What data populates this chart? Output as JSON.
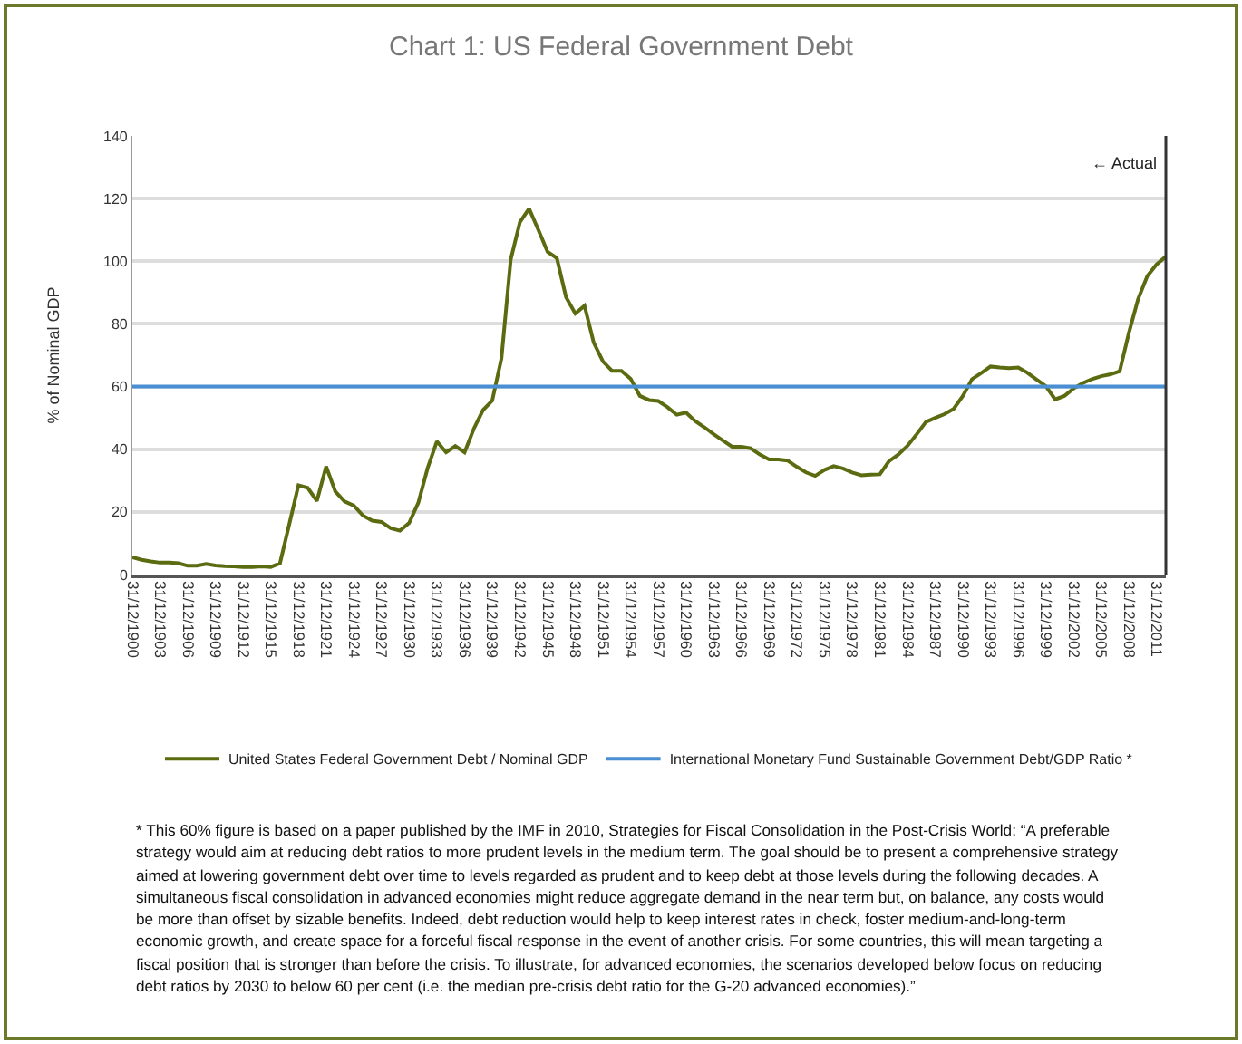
{
  "chart_data": {
    "type": "line",
    "title": "Chart 1: US Federal Government Debt",
    "ylabel": "% of Nominal GDP",
    "x": [
      "1900-12-31",
      "1901-12-31",
      "1902-12-31",
      "1903-12-31",
      "1904-12-31",
      "1905-12-31",
      "1906-12-31",
      "1907-12-31",
      "1908-12-31",
      "1909-12-31",
      "1910-12-31",
      "1911-12-31",
      "1912-12-31",
      "1913-12-31",
      "1914-12-31",
      "1915-12-31",
      "1916-12-31",
      "1917-12-31",
      "1918-12-31",
      "1919-12-31",
      "1920-12-31",
      "1921-12-31",
      "1922-12-31",
      "1923-12-31",
      "1924-12-31",
      "1925-12-31",
      "1926-12-31",
      "1927-12-31",
      "1928-12-31",
      "1929-12-31",
      "1930-12-31",
      "1931-12-31",
      "1932-12-31",
      "1933-12-31",
      "1934-12-31",
      "1935-12-31",
      "1936-12-31",
      "1937-12-31",
      "1938-12-31",
      "1939-12-31",
      "1940-12-31",
      "1941-12-31",
      "1942-12-31",
      "1943-12-31",
      "1944-12-31",
      "1945-12-31",
      "1946-12-31",
      "1947-12-31",
      "1948-12-31",
      "1949-12-31",
      "1950-12-31",
      "1951-12-31",
      "1952-12-31",
      "1953-12-31",
      "1954-12-31",
      "1955-12-31",
      "1956-12-31",
      "1957-12-31",
      "1958-12-31",
      "1959-12-31",
      "1960-12-31",
      "1961-12-31",
      "1962-12-31",
      "1963-12-31",
      "1964-12-31",
      "1965-12-31",
      "1966-12-31",
      "1967-12-31",
      "1968-12-31",
      "1969-12-31",
      "1970-12-31",
      "1971-12-31",
      "1972-12-31",
      "1973-12-31",
      "1974-12-31",
      "1975-12-31",
      "1976-12-31",
      "1977-12-31",
      "1978-12-31",
      "1979-12-31",
      "1980-12-31",
      "1981-12-31",
      "1982-12-31",
      "1983-12-31",
      "1984-12-31",
      "1985-12-31",
      "1986-12-31",
      "1987-12-31",
      "1988-12-31",
      "1989-12-31",
      "1990-12-31",
      "1991-12-31",
      "1992-12-31",
      "1993-12-31",
      "1994-12-31",
      "1995-12-31",
      "1996-12-31",
      "1997-12-31",
      "1998-12-31",
      "1999-12-31",
      "2000-12-31",
      "2001-12-31",
      "2002-12-31",
      "2003-12-31",
      "2004-12-31",
      "2005-12-31",
      "2006-12-31",
      "2007-12-31",
      "2008-12-31",
      "2009-12-31",
      "2010-12-31",
      "2011-12-31",
      "2012-12-31"
    ],
    "series": [
      {
        "name": "United States Federal Government Debt / Nominal GDP",
        "color": "#5a6b10",
        "values": [
          5.5,
          4.7,
          4.2,
          3.8,
          3.8,
          3.6,
          2.8,
          2.8,
          3.4,
          2.9,
          2.7,
          2.6,
          2.4,
          2.4,
          2.6,
          2.4,
          3.6,
          16,
          28.5,
          27.7,
          23.5,
          34.5,
          26.5,
          23.3,
          22,
          18.8,
          17.2,
          16.8,
          14.8,
          14,
          16.5,
          23,
          34,
          42.5,
          39,
          41,
          39,
          46.5,
          52.5,
          55.5,
          69,
          100.5,
          112.5,
          116.8,
          110,
          103,
          101,
          88.5,
          83.3,
          85.8,
          74,
          68,
          65,
          65,
          62.5,
          57,
          55.7,
          55.4,
          53.4,
          51,
          51.7,
          49,
          47,
          44.8,
          42.8,
          40.8,
          40.8,
          40.3,
          38.3,
          36.7,
          36.7,
          36.4,
          34.4,
          32.6,
          31.5,
          33.4,
          34.6,
          33.9,
          32.6,
          31.7,
          31.9,
          32,
          36.2,
          38.3,
          41.1,
          44.8,
          48.7,
          50,
          51.2,
          52.9,
          57,
          62.4,
          64.3,
          66.4,
          66.1,
          65.9,
          66.1,
          64.4,
          62.2,
          60.1,
          55.9,
          57,
          59.4,
          61.1,
          62.4,
          63.3,
          63.9,
          64.9,
          77.2,
          88,
          95.3,
          99,
          101.5
        ]
      },
      {
        "name": "International Monetary Fund Sustainable Government Debt/GDP Ratio *",
        "color": "#4a8fd4",
        "x": [
          "1900-12-31",
          "2012-12-31"
        ],
        "values": [
          60,
          60
        ]
      }
    ],
    "xlim": [
      "1900-12-31",
      "2012-12-31"
    ],
    "xticks": [
      {
        "value": "1900-12-31",
        "label": "31/12/1900"
      },
      {
        "value": "1903-12-31",
        "label": "31/12/1903"
      },
      {
        "value": "1906-12-31",
        "label": "31/12/1906"
      },
      {
        "value": "1909-12-31",
        "label": "31/12/1909"
      },
      {
        "value": "1912-12-31",
        "label": "31/12/1912"
      },
      {
        "value": "1915-12-31",
        "label": "31/12/1915"
      },
      {
        "value": "1918-12-31",
        "label": "31/12/1918"
      },
      {
        "value": "1921-12-31",
        "label": "31/12/1921"
      },
      {
        "value": "1924-12-31",
        "label": "31/12/1924"
      },
      {
        "value": "1927-12-31",
        "label": "31/12/1927"
      },
      {
        "value": "1930-12-31",
        "label": "31/12/1930"
      },
      {
        "value": "1933-12-31",
        "label": "31/12/1933"
      },
      {
        "value": "1936-12-31",
        "label": "31/12/1936"
      },
      {
        "value": "1939-12-31",
        "label": "31/12/1939"
      },
      {
        "value": "1942-12-31",
        "label": "31/12/1942"
      },
      {
        "value": "1945-12-31",
        "label": "31/12/1945"
      },
      {
        "value": "1948-12-31",
        "label": "31/12/1948"
      },
      {
        "value": "1951-12-31",
        "label": "31/12/1951"
      },
      {
        "value": "1954-12-31",
        "label": "31/12/1954"
      },
      {
        "value": "1957-12-31",
        "label": "31/12/1957"
      },
      {
        "value": "1960-12-31",
        "label": "31/12/1960"
      },
      {
        "value": "1963-12-31",
        "label": "31/12/1963"
      },
      {
        "value": "1966-12-31",
        "label": "31/12/1966"
      },
      {
        "value": "1969-12-31",
        "label": "31/12/1969"
      },
      {
        "value": "1972-12-31",
        "label": "31/12/1972"
      },
      {
        "value": "1975-12-31",
        "label": "31/12/1975"
      },
      {
        "value": "1978-12-31",
        "label": "31/12/1978"
      },
      {
        "value": "1981-12-31",
        "label": "31/12/1981"
      },
      {
        "value": "1984-12-31",
        "label": "31/12/1984"
      },
      {
        "value": "1987-12-31",
        "label": "31/12/1987"
      },
      {
        "value": "1990-12-31",
        "label": "31/12/1990"
      },
      {
        "value": "1993-12-31",
        "label": "31/12/1993"
      },
      {
        "value": "1996-12-31",
        "label": "31/12/1996"
      },
      {
        "value": "1999-12-31",
        "label": "31/12/1999"
      },
      {
        "value": "2002-12-31",
        "label": "31/12/2002"
      },
      {
        "value": "2005-12-31",
        "label": "31/12/2005"
      },
      {
        "value": "2008-12-31",
        "label": "31/12/2008"
      },
      {
        "value": "2011-12-31",
        "label": "31/12/2011"
      }
    ],
    "ylim": [
      0,
      140
    ],
    "yticks": [
      0,
      20,
      40,
      60,
      80,
      100,
      120,
      140
    ],
    "grid": "y",
    "legend": "bottom",
    "marker": "none",
    "line_style": "solid",
    "annotations": [
      "← Actual",
      "* This 60% figure is based on a paper published by the IMF in 2010, Strategies for Fiscal Consolidation in the Post-Crisis World:  “A preferable strategy would aim at reducing debt ratios to more prudent levels in the medium term. The goal should be to present a comprehensive strategy aimed at lowering government debt over time to levels regarded as prudent and to keep debt at those levels during the following decades. A simultaneous fiscal consolidation in advanced economies might reduce aggregate demand in the near term but, on balance, any costs would be more than offset by sizable benefits. Indeed, debt reduction would help to keep interest rates in check, foster medium-and-long-term economic growth, and create space for a forceful fiscal response in the event of another crisis. For some countries, this will mean targeting a fiscal position that is stronger than before the crisis. To illustrate, for advanced economies, the scenarios developed below focus on reducing debt ratios by 2030 to below 60 per cent (i.e. the median pre-crisis debt ratio for the G-20 advanced economies).”"
    ]
  }
}
